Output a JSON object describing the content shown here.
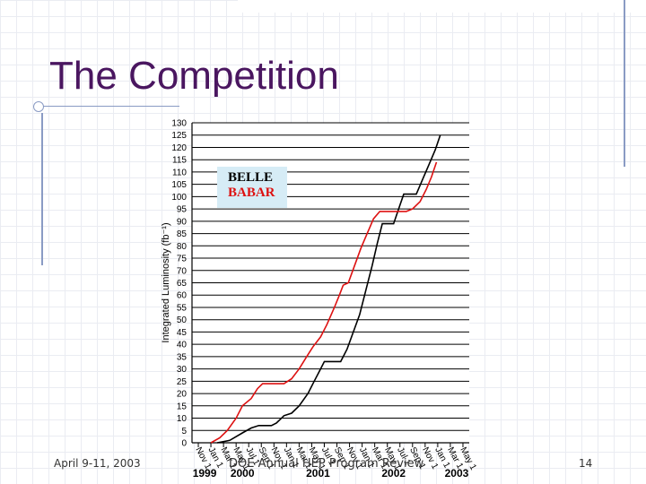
{
  "slide": {
    "title": "The Competition",
    "footer_left": "April 9-11, 2003",
    "footer_center": "DOE Annual HEP Program Review",
    "page_number": "14"
  },
  "colors": {
    "title": "#4a1660",
    "belle": "#000000",
    "babar": "#dd1111",
    "legend_bg": "#d6ecf6"
  },
  "chart_data": {
    "type": "line",
    "ylabel": "Integrated Luminosity (fb⁻¹)",
    "ylim": [
      0,
      130
    ],
    "ytick_step": 5,
    "ygrid_step": 5,
    "months": [
      "Nov 1",
      "Jan 1",
      "Mar 1",
      "May 1",
      "Jul 1",
      "Sep 1",
      "Nov 1",
      "Jan 1",
      "Mar 1",
      "May 1",
      "Jul 1",
      "Sep 1",
      "Nov 1",
      "Jan 1",
      "Mar 1",
      "May 1",
      "Jul 1",
      "Sep 1",
      "Nov 1",
      "Jan 1",
      "Mar 1",
      "May 1"
    ],
    "years": [
      {
        "label": "1999",
        "position": 0.5
      },
      {
        "label": "2000",
        "position": 3.5
      },
      {
        "label": "2001",
        "position": 9.5
      },
      {
        "label": "2002",
        "position": 15.5
      },
      {
        "label": "2003",
        "position": 20.5
      }
    ],
    "legend": [
      "BELLE",
      "BABAR"
    ],
    "series": [
      {
        "name": "BELLE",
        "color": "#000000",
        "points": [
          [
            1.5,
            0
          ],
          [
            2.5,
            1
          ],
          [
            3.5,
            4
          ],
          [
            4.2,
            6
          ],
          [
            4.8,
            7
          ],
          [
            5.8,
            7
          ],
          [
            6.2,
            8
          ],
          [
            6.8,
            11
          ],
          [
            7.4,
            12
          ],
          [
            8.0,
            15
          ],
          [
            8.7,
            20
          ],
          [
            9.2,
            25
          ],
          [
            9.6,
            29
          ],
          [
            10.0,
            33
          ],
          [
            11.3,
            33
          ],
          [
            11.8,
            38
          ],
          [
            12.3,
            45
          ],
          [
            12.8,
            52
          ],
          [
            13.3,
            62
          ],
          [
            13.8,
            72
          ],
          [
            14.2,
            81
          ],
          [
            14.6,
            89
          ],
          [
            15.5,
            89
          ],
          [
            15.9,
            95
          ],
          [
            16.3,
            101
          ],
          [
            17.3,
            101
          ],
          [
            17.8,
            107
          ],
          [
            18.3,
            113
          ],
          [
            18.8,
            119
          ],
          [
            19.2,
            125
          ]
        ]
      },
      {
        "name": "BABAR",
        "color": "#dd1111",
        "points": [
          [
            1.0,
            0
          ],
          [
            1.7,
            2
          ],
          [
            2.3,
            5
          ],
          [
            3.0,
            10
          ],
          [
            3.5,
            15
          ],
          [
            4.2,
            18
          ],
          [
            4.7,
            22
          ],
          [
            5.1,
            24
          ],
          [
            6.8,
            24
          ],
          [
            7.4,
            26
          ],
          [
            8.0,
            30
          ],
          [
            8.6,
            35
          ],
          [
            9.1,
            39
          ],
          [
            9.7,
            43
          ],
          [
            10.2,
            48
          ],
          [
            10.8,
            55
          ],
          [
            11.2,
            60
          ],
          [
            11.5,
            64
          ],
          [
            11.9,
            65
          ],
          [
            12.4,
            72
          ],
          [
            12.9,
            79
          ],
          [
            13.4,
            85
          ],
          [
            13.9,
            91
          ],
          [
            14.4,
            94
          ],
          [
            16.5,
            94
          ],
          [
            17.0,
            95
          ],
          [
            17.6,
            98
          ],
          [
            18.1,
            103
          ],
          [
            18.5,
            108
          ],
          [
            18.9,
            114
          ]
        ]
      }
    ]
  }
}
